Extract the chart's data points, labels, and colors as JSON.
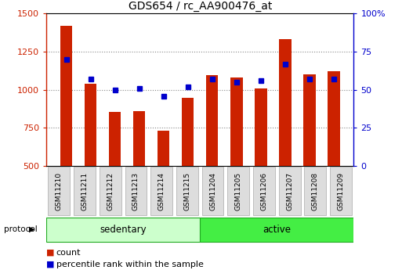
{
  "title": "GDS654 / rc_AA900476_at",
  "samples": [
    "GSM11210",
    "GSM11211",
    "GSM11212",
    "GSM11213",
    "GSM11214",
    "GSM11215",
    "GSM11204",
    "GSM11205",
    "GSM11206",
    "GSM11207",
    "GSM11208",
    "GSM11209"
  ],
  "counts": [
    1420,
    1040,
    855,
    858,
    730,
    945,
    1095,
    1080,
    1010,
    1330,
    1100,
    1120
  ],
  "percentiles": [
    70,
    57,
    50,
    51,
    46,
    52,
    57,
    55,
    56,
    67,
    57,
    57
  ],
  "bar_color": "#cc2200",
  "dot_color": "#0000cc",
  "ylim_left": [
    500,
    1500
  ],
  "ylim_right": [
    0,
    100
  ],
  "yticks_left": [
    500,
    750,
    1000,
    1250,
    1500
  ],
  "yticks_right": [
    0,
    25,
    50,
    75,
    100
  ],
  "yticklabels_right": [
    "0",
    "25",
    "50",
    "75",
    "100%"
  ],
  "groups": [
    {
      "label": "sedentary",
      "start": 0,
      "end": 6,
      "color": "#ccffcc"
    },
    {
      "label": "active",
      "start": 6,
      "end": 12,
      "color": "#44ee44"
    }
  ],
  "protocol_label": "protocol",
  "legend_count_label": "count",
  "legend_pct_label": "percentile rank within the sample",
  "grid_color": "#888888",
  "bar_width": 0.5,
  "base_value": 500,
  "sample_box_color": "#dddddd",
  "sample_box_edge": "#aaaaaa"
}
